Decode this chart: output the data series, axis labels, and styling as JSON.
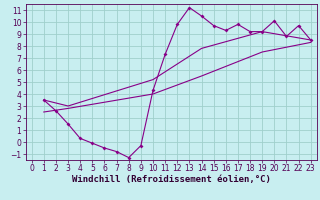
{
  "xlabel": "Windchill (Refroidissement éolien,°C)",
  "bg_color": "#c8eef0",
  "grid_color": "#a0d0cc",
  "line_color": "#880088",
  "xlim": [
    -0.5,
    23.5
  ],
  "ylim": [
    -1.5,
    11.5
  ],
  "xticks": [
    0,
    1,
    2,
    3,
    4,
    5,
    6,
    7,
    8,
    9,
    10,
    11,
    12,
    13,
    14,
    15,
    16,
    17,
    18,
    19,
    20,
    21,
    22,
    23
  ],
  "yticks": [
    -1,
    0,
    1,
    2,
    3,
    4,
    5,
    6,
    7,
    8,
    9,
    10,
    11
  ],
  "series1_x": [
    1,
    2,
    3,
    4,
    5,
    6,
    7,
    8,
    9,
    10,
    11,
    12,
    13,
    14,
    15,
    16,
    17,
    18,
    19,
    20,
    21,
    22,
    23
  ],
  "series1_y": [
    3.5,
    2.6,
    1.5,
    0.3,
    -0.1,
    -0.5,
    -0.8,
    -1.3,
    -0.3,
    4.3,
    7.3,
    9.8,
    11.2,
    10.5,
    9.7,
    9.3,
    9.8,
    9.2,
    9.2,
    10.1,
    8.8,
    9.7,
    8.5
  ],
  "series2_x": [
    1,
    3,
    10,
    14,
    19,
    23
  ],
  "series2_y": [
    3.5,
    3.0,
    5.2,
    7.8,
    9.2,
    8.5
  ],
  "series3_x": [
    1,
    3,
    10,
    14,
    19,
    23
  ],
  "series3_y": [
    2.5,
    2.8,
    4.0,
    5.5,
    7.5,
    8.3
  ],
  "tick_fontsize": 5.5,
  "xlabel_fontsize": 6.5
}
